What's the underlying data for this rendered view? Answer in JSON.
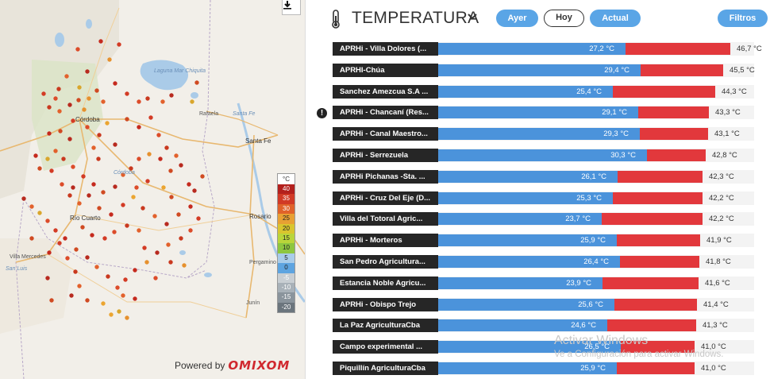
{
  "map": {
    "places": [
      "Laguna Mar Chiquita",
      "Rafaela",
      "Santa Fe",
      "Córdoba",
      "Santa Fe",
      "Córdoba",
      "Río Cuarto",
      "Rosario",
      "Villa Mercedes",
      "San Luis",
      "Pergamino",
      "Junín"
    ],
    "legend": {
      "unit": "°C",
      "levels": [
        {
          "label": "40",
          "color": "#b3201d"
        },
        {
          "label": "35",
          "color": "#d13a26"
        },
        {
          "label": "30",
          "color": "#e0622a"
        },
        {
          "label": "25",
          "color": "#e8a033"
        },
        {
          "label": "20",
          "color": "#d9c52e"
        },
        {
          "label": "15",
          "color": "#bad53a"
        },
        {
          "label": "10",
          "color": "#8ec63f"
        },
        {
          "label": "5",
          "color": "#a9cce9"
        },
        {
          "label": "0",
          "color": "#5ea4e0"
        },
        {
          "label": "-5",
          "color": "#c8ced3"
        },
        {
          "label": "-10",
          "color": "#a8b1b8"
        },
        {
          "label": "-15",
          "color": "#8a949c"
        },
        {
          "label": "-20",
          "color": "#6b757d"
        }
      ]
    },
    "powered_by": "Powered by",
    "brand": "OMIXOM",
    "download_icon": "download-icon"
  },
  "header": {
    "title": "TEMPERATURA",
    "buttons": [
      "Ayer",
      "Hoy",
      "Actual"
    ],
    "filters": "Filtros",
    "active": "Hoy"
  },
  "scale": {
    "max": 50
  },
  "stations": [
    {
      "name": "APRHi - Villa Dolores (...",
      "min_label": "27,2 °C",
      "max_label": "46,7 °C",
      "min": 27.2,
      "max": 46.7
    },
    {
      "name": "APRHI-Chúa",
      "min_label": "29,4 °C",
      "max_label": "45,5 °C",
      "min": 29.4,
      "max": 45.5
    },
    {
      "name": "Sanchez Amezcua S.A ...",
      "min_label": "25,4 °C",
      "max_label": "44,3 °C",
      "min": 25.4,
      "max": 44.3
    },
    {
      "name": "APRHi - Chancaní (Res...",
      "min_label": "29,1 °C",
      "max_label": "43,3 °C",
      "min": 29.1,
      "max": 43.3,
      "warning": true
    },
    {
      "name": "APRHi - Canal Maestro...",
      "min_label": "29,3 °C",
      "max_label": "43,1 °C",
      "min": 29.3,
      "max": 43.1
    },
    {
      "name": "APRHi - Serrezuela",
      "min_label": "30,3 °C",
      "max_label": "42,8 °C",
      "min": 30.3,
      "max": 42.8
    },
    {
      "name": "APRHi Pichanas -Sta. ...",
      "min_label": "26,1 °C",
      "max_label": "42,3 °C",
      "min": 26.1,
      "max": 42.3
    },
    {
      "name": "APRHi - Cruz Del Eje (D...",
      "min_label": "25,3 °C",
      "max_label": "42,2 °C",
      "min": 25.3,
      "max": 42.2
    },
    {
      "name": "Villa del Totoral Agric...",
      "min_label": "23,7 °C",
      "max_label": "42,2 °C",
      "min": 23.7,
      "max": 42.2
    },
    {
      "name": "APRHi - Morteros",
      "min_label": "25,9 °C",
      "max_label": "41,9 °C",
      "min": 25.9,
      "max": 41.9
    },
    {
      "name": "San Pedro Agricultura...",
      "min_label": "26,4 °C",
      "max_label": "41,8 °C",
      "min": 26.4,
      "max": 41.8
    },
    {
      "name": "Estancia Noble Agricu...",
      "min_label": "23,9 °C",
      "max_label": "41,6 °C",
      "min": 23.9,
      "max": 41.6
    },
    {
      "name": "APRHi - Obispo Trejo",
      "min_label": "25,6 °C",
      "max_label": "41,4 °C",
      "min": 25.6,
      "max": 41.4
    },
    {
      "name": "La Paz AgriculturaCba",
      "min_label": "24,6 °C",
      "max_label": "41,3 °C",
      "min": 24.6,
      "max": 41.3
    },
    {
      "name": "Campo experimental ...",
      "min_label": "26,5 °C",
      "max_label": "41,0 °C",
      "min": 26.5,
      "max": 41.0
    },
    {
      "name": "Piquillín AgriculturaCba",
      "min_label": "25,9 °C",
      "max_label": "41,0 °C",
      "min": 25.9,
      "max": 41.0
    }
  ],
  "watermark": {
    "line1": "Activar Windows",
    "line2": "Ve a Configuración para activar Windows."
  },
  "colors": {
    "min_bar": "#4b93db",
    "max_bar": "#e2383c",
    "accent": "#5aa5e6"
  }
}
